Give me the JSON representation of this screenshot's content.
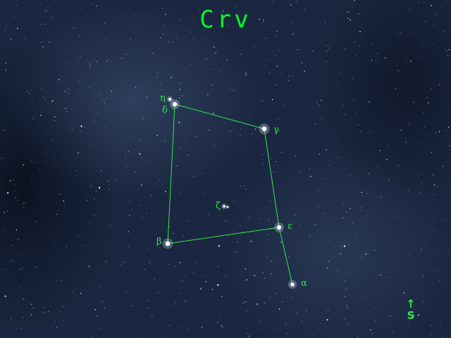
{
  "title": "Crv",
  "compass": {
    "arrow": "↑",
    "label": "S"
  },
  "stars": [
    {
      "id": "eta",
      "symbol": "η",
      "mag": 4.3,
      "color": "#ffffff"
    },
    {
      "id": "delta",
      "symbol": "δ",
      "mag": 2.9,
      "color": "#ffffff"
    },
    {
      "id": "gamma",
      "symbol": "γ",
      "mag": 2.6,
      "color": "#ffffff"
    },
    {
      "id": "zeta",
      "symbol": "ζ",
      "mag": 5.2,
      "color": "#ffffff"
    },
    {
      "id": "beta",
      "symbol": "β",
      "mag": 2.7,
      "color": "#ffffff"
    },
    {
      "id": "epsilon",
      "symbol": "ε",
      "mag": 3.0,
      "color": "#ffffff"
    },
    {
      "id": "alpha",
      "symbol": "α",
      "mag": 4.0,
      "color": "#ffffff"
    }
  ],
  "colors": {
    "lines": "#2ee84b",
    "labels": "#2fe84a",
    "title": "#00ff2a"
  }
}
